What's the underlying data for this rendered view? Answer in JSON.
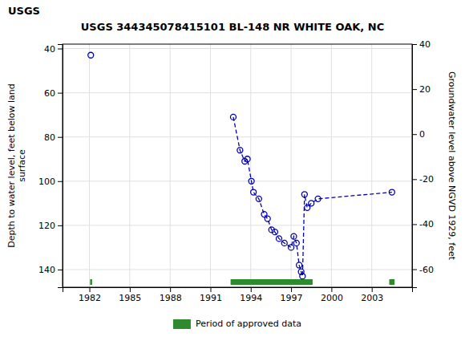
{
  "chart_data": {
    "type": "line",
    "title": "USGS 344345078415101 BL-148 NR WHITE OAK, NC",
    "annotations": [
      "USGS"
    ],
    "ylabel": "Depth to water level, feet below land\nsurface",
    "y2label": "Groundwater level above NGVD 1929, feet",
    "xlim": [
      1980.0,
      2006.0
    ],
    "xticks": [
      1982,
      1985,
      1988,
      1991,
      1994,
      1997,
      2000,
      2003
    ],
    "ylim": [
      148,
      38
    ],
    "yticks": [
      40,
      60,
      80,
      100,
      120,
      140
    ],
    "y2lim": [
      -68,
      40
    ],
    "y2ticks": [
      40,
      20,
      0,
      -20,
      -40,
      -60
    ],
    "grid": true,
    "legend": "bottom",
    "series": [
      {
        "color": "#0000bb",
        "marker": "circle",
        "line_style": "none",
        "x": [
          1982.1
        ],
        "values": [
          43
        ]
      },
      {
        "color": "#0000bb",
        "marker": "circle",
        "line_style": "dashed",
        "x": [
          1992.7,
          1993.2,
          1993.55,
          1993.75,
          1994.05,
          1994.2,
          1994.6,
          1995.0,
          1995.25,
          1995.55,
          1995.8,
          1996.1,
          1996.5,
          1997.0,
          1997.2,
          1997.4,
          1997.6,
          1997.75,
          1997.85,
          1998.0,
          1998.2,
          1998.5,
          1999.0,
          2004.5
        ],
        "values": [
          71,
          86,
          91,
          90,
          100,
          105,
          108,
          115,
          117,
          122,
          123,
          126,
          128,
          130,
          125,
          128,
          138,
          141,
          143,
          106,
          112,
          110,
          108,
          105
        ]
      }
    ],
    "periods": {
      "name": "Period of approved data",
      "color": "#2d8b2d",
      "ranges": [
        [
          1982.05,
          1982.2
        ],
        [
          1992.5,
          1998.6
        ],
        [
          2004.3,
          2004.7
        ]
      ]
    }
  }
}
